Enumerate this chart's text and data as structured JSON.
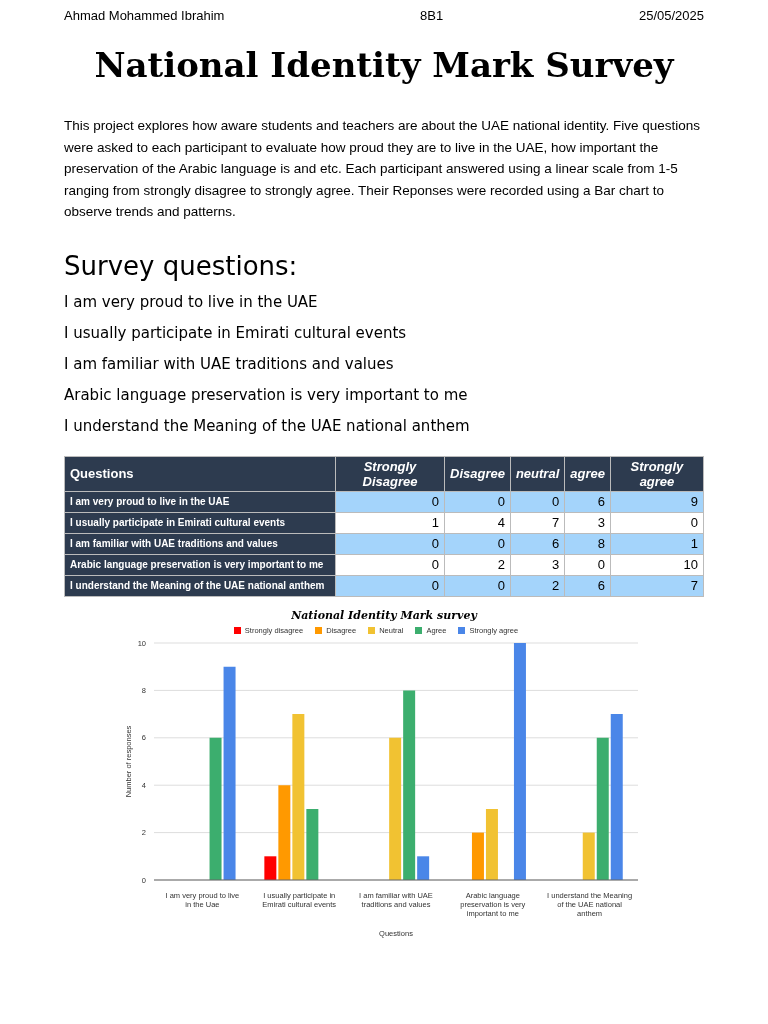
{
  "chart_data": [
    {
      "type": "other",
      "title": "National Identity Mark Survey",
      "subtitle": "This project explores how aware students and teachers are about the UAE national identity. Five questions were asked to each participant to evaluate how proud they are to live in the UAE, how important the preservation of the Arabic language is and etc. Each participant answered using a linear scale from 1-5 ranging from strongly disagree to strongly agree. Their Reponses were recorded using a Bar chart to observe trends and patterns.",
      "annotations": [
        "Ahmad Mohammed Ibrahim",
        "8B1",
        "25/05/2025",
        "Survey questions:",
        "I am very proud to live in the UAE",
        "I usually participate in Emirati cultural events",
        "I am familiar with UAE traditions and values",
        "Arabic language preservation is very important to me",
        "I understand the Meaning of the UAE national anthem"
      ]
    },
    {
      "type": "other",
      "annotations": [
        "Questions",
        "Strongly Disagree",
        "Disagree",
        "neutral",
        "agree",
        "Strongly agree",
        "I am very proud to live in the UAE",
        "0",
        "0",
        "0",
        "6",
        "9",
        "I usually participate in Emirati cultural events",
        "1",
        "4",
        "7",
        "3",
        "0",
        "I am familiar with UAE traditions and values",
        "0",
        "0",
        "6",
        "8",
        "1",
        "Arabic language preservation is very important to me",
        "0",
        "2",
        "3",
        "0",
        "10",
        "I understand the Meaning of the UAE national anthem",
        "0",
        "0",
        "2",
        "6",
        "7"
      ]
    },
    {
      "type": "bar",
      "title": "National Identity Mark survey",
      "xlabel": "Questions",
      "ylabel": "Number of responses",
      "categories": [
        "I am very proud to live in the Uae",
        "I usually participate in Emirati cultural events",
        "I am familiar with UAE traditions and values",
        "Arabic language preservation is very important to me",
        "I understand the Meaning of the UAE national anthem"
      ],
      "series": [
        {
          "name": "Strongly disagree",
          "color": "#ff0000",
          "values": [
            0,
            1,
            0,
            0,
            0
          ]
        },
        {
          "name": "Disagree",
          "color": "#ff9900",
          "values": [
            0,
            4,
            0,
            2,
            0
          ]
        },
        {
          "name": "Neutral",
          "color": "#f1c232",
          "values": [
            0,
            7,
            6,
            3,
            2
          ]
        },
        {
          "name": "Agree",
          "color": "#3cae6e",
          "values": [
            6,
            3,
            8,
            0,
            6
          ]
        },
        {
          "name": "Strongly agree",
          "color": "#4a86e8",
          "values": [
            9,
            0,
            1,
            10,
            7
          ]
        }
      ],
      "ylim": [
        0,
        10
      ],
      "yticks": [
        0,
        2,
        4,
        6,
        8,
        10
      ],
      "grid": "y",
      "legend": "top"
    }
  ]
}
